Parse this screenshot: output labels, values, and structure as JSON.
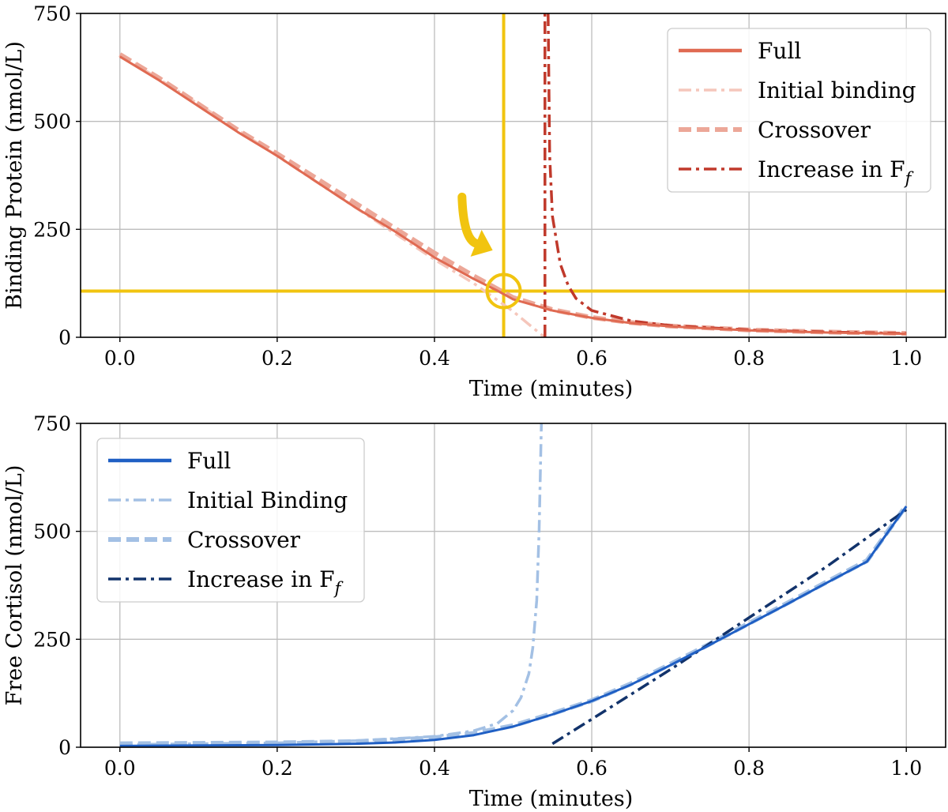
{
  "chart_data": [
    {
      "type": "line",
      "title": "",
      "xlabel": "Time (minutes)",
      "ylabel": "Binding Protein (nmol/L)",
      "xlim": [
        -0.05,
        1.05
      ],
      "ylim": [
        0,
        750
      ],
      "xticks": [
        "0.0",
        "0.2",
        "0.4",
        "0.6",
        "0.8",
        "1.0"
      ],
      "xtick_values": [
        0.0,
        0.2,
        0.4,
        0.6,
        0.8,
        1.0
      ],
      "yticks": [
        "0",
        "250",
        "500",
        "750"
      ],
      "ytick_values": [
        0,
        250,
        500,
        750
      ],
      "grid": true,
      "legend_position": "top-right",
      "series": [
        {
          "name": "Full",
          "name_sub": "",
          "color": "#e06a52",
          "style": "solid",
          "x": [
            0.0,
            0.05,
            0.1,
            0.15,
            0.2,
            0.25,
            0.3,
            0.35,
            0.4,
            0.45,
            0.48,
            0.5,
            0.55,
            0.6,
            0.65,
            0.7,
            0.8,
            0.9,
            1.0
          ],
          "y": [
            650,
            595,
            535,
            475,
            420,
            360,
            300,
            245,
            185,
            135,
            108,
            88,
            62,
            45,
            33,
            25,
            16,
            11,
            8
          ]
        },
        {
          "name": "Initial binding",
          "name_sub": "",
          "color": "#f5c6bb",
          "style": "dashdot",
          "x": [
            0.0,
            0.1,
            0.2,
            0.3,
            0.4,
            0.45,
            0.5,
            0.54
          ],
          "y": [
            655,
            540,
            420,
            300,
            180,
            125,
            60,
            0
          ]
        },
        {
          "name": "Crossover",
          "name_sub": "",
          "color": "#eca798",
          "style": "dashed",
          "x": [
            0.0,
            0.05,
            0.1,
            0.15,
            0.2,
            0.25,
            0.3,
            0.35,
            0.4,
            0.45,
            0.48,
            0.5,
            0.55,
            0.6,
            0.65,
            0.7,
            0.8,
            0.9,
            1.0
          ],
          "y": [
            655,
            600,
            540,
            480,
            425,
            368,
            310,
            252,
            195,
            142,
            112,
            92,
            64,
            46,
            34,
            26,
            17,
            12,
            9
          ]
        },
        {
          "name": "Increase in F",
          "name_sub": "f",
          "color": "#c0392b",
          "style": "dashdot",
          "segments": [
            {
              "x": [
                0.5405,
                0.5405
              ],
              "y": [
                0,
                750
              ]
            },
            {
              "x": [
                0.5445,
                0.5465,
                0.55,
                0.56,
                0.57,
                0.58,
                0.6,
                0.65,
                0.7,
                0.8,
                0.9,
                1.0
              ],
              "y": [
                750,
                420,
                280,
                170,
                120,
                90,
                62,
                38,
                27,
                17,
                12,
                9
              ]
            }
          ]
        }
      ],
      "annotations": [
        {
          "type": "crosshair",
          "color": "#f1c40f",
          "x": 0.488,
          "y": 107
        },
        {
          "type": "circle-marker",
          "color": "#f1c40f",
          "x": 0.488,
          "y": 107
        },
        {
          "type": "arrow",
          "color": "#f1c40f",
          "from": [
            0.435,
            325
          ],
          "to": [
            0.47,
            205
          ]
        }
      ]
    },
    {
      "type": "line",
      "title": "",
      "xlabel": "Time (minutes)",
      "ylabel": "Free Cortisol (nmol/L)",
      "xlim": [
        -0.05,
        1.05
      ],
      "ylim": [
        0,
        750
      ],
      "xticks": [
        "0.0",
        "0.2",
        "0.4",
        "0.6",
        "0.8",
        "1.0"
      ],
      "xtick_values": [
        0.0,
        0.2,
        0.4,
        0.6,
        0.8,
        1.0
      ],
      "yticks": [
        "0",
        "250",
        "500",
        "750"
      ],
      "ytick_values": [
        0,
        250,
        500,
        750
      ],
      "grid": true,
      "legend_position": "top-left",
      "series": [
        {
          "name": "Full",
          "name_sub": "",
          "color": "#1f5fc4",
          "style": "solid",
          "x": [
            0.0,
            0.1,
            0.2,
            0.3,
            0.35,
            0.4,
            0.45,
            0.5,
            0.55,
            0.6,
            0.65,
            0.7,
            0.75,
            0.8,
            0.85,
            0.9,
            0.95,
            1.0
          ],
          "y": [
            3,
            4,
            5,
            8,
            11,
            17,
            28,
            48,
            76,
            107,
            145,
            190,
            237,
            285,
            333,
            382,
            430,
            558
          ]
        },
        {
          "name": "Initial Binding",
          "name_sub": "",
          "color": "#a3c0e4",
          "style": "dashdot",
          "x": [
            0.0,
            0.2,
            0.3,
            0.4,
            0.45,
            0.48,
            0.5,
            0.51,
            0.52,
            0.525,
            0.53,
            0.533,
            0.536
          ],
          "y": [
            6,
            10,
            15,
            25,
            38,
            55,
            85,
            115,
            170,
            230,
            340,
            500,
            750
          ]
        },
        {
          "name": "Crossover",
          "name_sub": "",
          "color": "#a3c0e4",
          "style": "dashed",
          "x": [
            0.0,
            0.1,
            0.2,
            0.3,
            0.35,
            0.4,
            0.45,
            0.5,
            0.55,
            0.6,
            0.65,
            0.7,
            0.75,
            0.8,
            0.85,
            0.9,
            0.95,
            1.0
          ],
          "y": [
            8,
            9,
            10,
            13,
            17,
            22,
            32,
            50,
            78,
            108,
            147,
            192,
            239,
            287,
            335,
            384,
            432,
            560
          ]
        },
        {
          "name": "Increase in F",
          "name_sub": "f",
          "color": "#12336b",
          "style": "dashdot",
          "x": [
            0.55,
            0.6,
            0.7,
            0.8,
            0.9,
            1.0
          ],
          "y": [
            8,
            65,
            180,
            300,
            420,
            550
          ]
        }
      ]
    }
  ]
}
